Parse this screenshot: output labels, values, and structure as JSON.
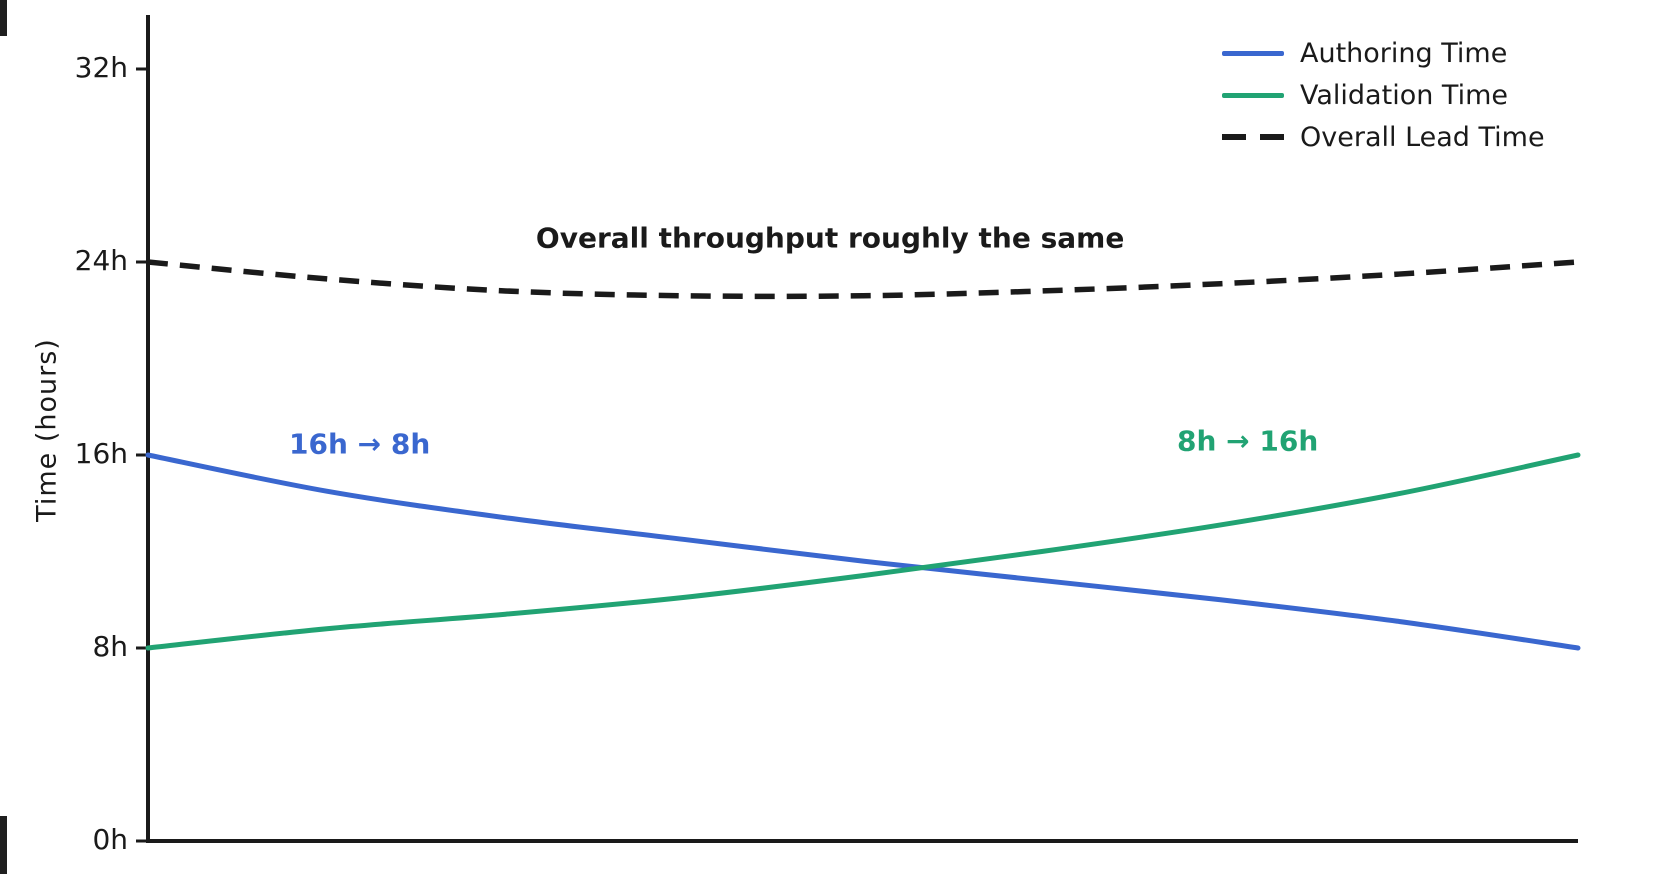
{
  "chart_data": {
    "type": "line",
    "ylabel": "Time (hours)",
    "xlabel": "",
    "x_axis_labeled": false,
    "grid": false,
    "legend_position": "upper right",
    "ylim": [
      0,
      34.2
    ],
    "xlim": [
      0,
      1
    ],
    "x": [
      0,
      0.125,
      0.25,
      0.375,
      0.5,
      0.625,
      0.75,
      0.875,
      1
    ],
    "series": [
      {
        "name": "Authoring Time",
        "color": "#3a67cf",
        "style": "solid",
        "values": [
          16.0,
          14.5,
          13.4,
          12.5,
          11.6,
          10.8,
          10.0,
          9.1,
          8.0
        ]
      },
      {
        "name": "Validation Time",
        "color": "#21a373",
        "style": "solid",
        "values": [
          8.0,
          8.8,
          9.4,
          10.1,
          11.0,
          12.0,
          13.1,
          14.4,
          16.0
        ]
      },
      {
        "name": "Overall Lead Time",
        "color": "#1a1a1a",
        "style": "dashed",
        "values": [
          24.0,
          23.3,
          22.8,
          22.6,
          22.6,
          22.8,
          23.1,
          23.5,
          24.0
        ]
      }
    ],
    "yticks": [
      {
        "value": 0,
        "label": "0h"
      },
      {
        "value": 8,
        "label": "8h"
      },
      {
        "value": 16,
        "label": "16h"
      },
      {
        "value": 24,
        "label": "24h"
      },
      {
        "value": 32,
        "label": "32h"
      }
    ],
    "annotations": [
      {
        "text": "Overall throughput roughly the same",
        "color": "#1a1a1a",
        "x": 0.477,
        "y": 25.0
      },
      {
        "text": "16h → 8h",
        "color": "#3a67cf",
        "x": 0.148,
        "y": 16.45
      },
      {
        "text": "8h → 16h",
        "color": "#21a373",
        "x": 0.769,
        "y": 16.57
      }
    ]
  }
}
